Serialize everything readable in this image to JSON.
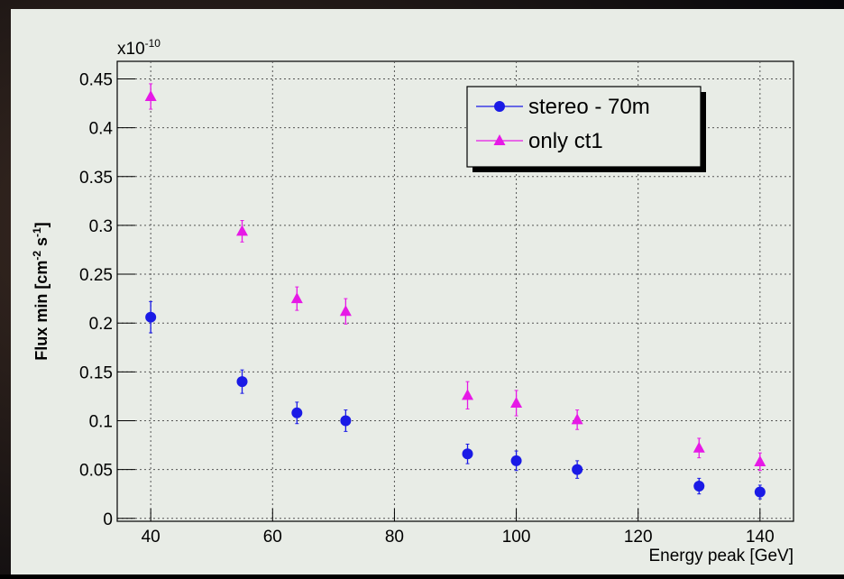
{
  "chart_data": {
    "type": "scatter",
    "xlabel": "Energy peak [GeV]",
    "ylabel_parts": [
      {
        "text": "Flux min [cm"
      },
      {
        "text": "-2",
        "sup": true
      },
      {
        "text": " s"
      },
      {
        "text": "-1",
        "sup": true
      },
      {
        "text": "]"
      }
    ],
    "y_multiplier": {
      "base": "x10",
      "exp": "-10"
    },
    "xlim": [
      34.5,
      145.5
    ],
    "xticks": [
      40,
      60,
      80,
      100,
      120,
      140
    ],
    "ylim": [
      -0.003,
      0.468
    ],
    "yticks": [
      0,
      0.05,
      0.1,
      0.15,
      0.2,
      0.25,
      0.3,
      0.35,
      0.4,
      0.45
    ],
    "grid": true,
    "legend": "top-right",
    "series": [
      {
        "name": "stereo - 70m",
        "color": "#1a1ae6",
        "marker": "circle",
        "x": [
          40,
          55,
          64,
          72,
          92,
          100,
          110,
          130,
          140
        ],
        "values": [
          0.206,
          0.14,
          0.108,
          0.1,
          0.066,
          0.059,
          0.05,
          0.033,
          0.027
        ],
        "errors": [
          0.016,
          0.012,
          0.011,
          0.011,
          0.01,
          0.01,
          0.009,
          0.008,
          0.007
        ]
      },
      {
        "name": "only ct1",
        "color": "#e619e6",
        "marker": "triangle",
        "x": [
          40,
          55,
          64,
          72,
          92,
          100,
          110,
          130,
          140
        ],
        "values": [
          0.432,
          0.294,
          0.225,
          0.212,
          0.126,
          0.118,
          0.101,
          0.072,
          0.058
        ],
        "errors": [
          0.013,
          0.011,
          0.012,
          0.013,
          0.014,
          0.013,
          0.01,
          0.01,
          0.009
        ]
      }
    ]
  }
}
